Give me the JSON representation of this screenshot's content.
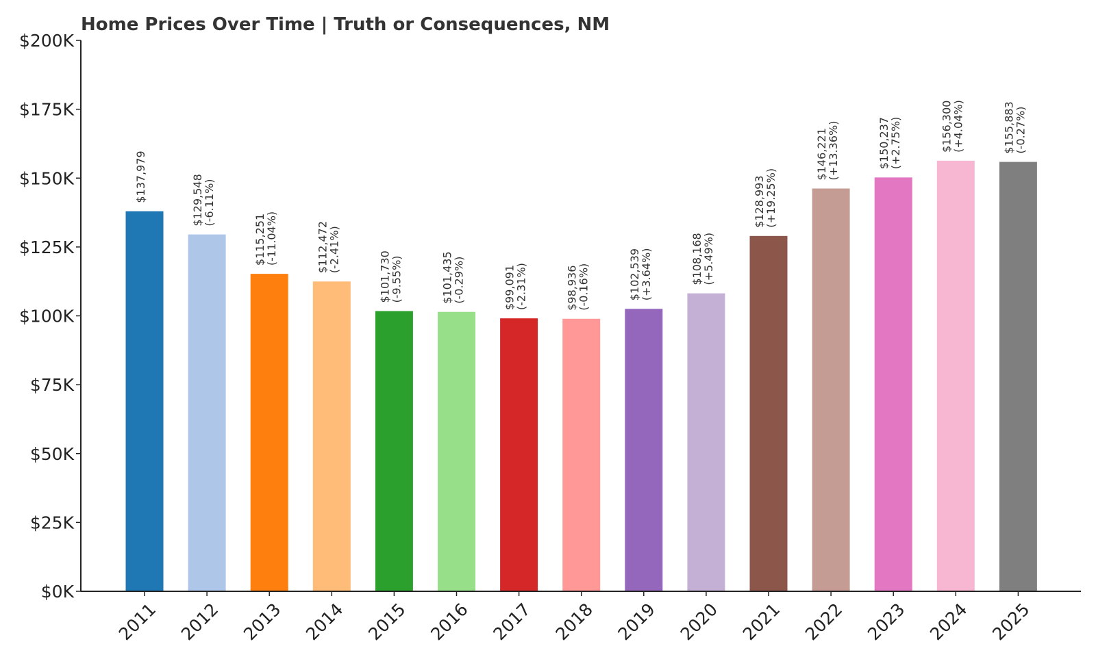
{
  "chart_data": {
    "type": "bar",
    "title": "Home Prices Over Time | Truth or Consequences, NM",
    "xlabel": "",
    "ylabel": "",
    "ylim": [
      0,
      200000
    ],
    "yticks": [
      {
        "value": 0,
        "label": "$0K"
      },
      {
        "value": 25000,
        "label": "$25K"
      },
      {
        "value": 50000,
        "label": "$50K"
      },
      {
        "value": 75000,
        "label": "$75K"
      },
      {
        "value": 100000,
        "label": "$100K"
      },
      {
        "value": 125000,
        "label": "$125K"
      },
      {
        "value": 150000,
        "label": "$150K"
      },
      {
        "value": 175000,
        "label": "$175K"
      },
      {
        "value": 200000,
        "label": "$200K"
      }
    ],
    "grid": false,
    "categories": [
      "2011",
      "2012",
      "2013",
      "2014",
      "2015",
      "2016",
      "2017",
      "2018",
      "2019",
      "2020",
      "2021",
      "2022",
      "2023",
      "2024",
      "2025"
    ],
    "values": [
      137979,
      129548,
      115251,
      112472,
      101730,
      101435,
      99091,
      98936,
      102539,
      108168,
      128993,
      146221,
      150237,
      156300,
      155883
    ],
    "value_labels": [
      "$137,979",
      "$129,548",
      "$115,251",
      "$112,472",
      "$101,730",
      "$101,435",
      "$99,091",
      "$98,936",
      "$102,539",
      "$108,168",
      "$128,993",
      "$146,221",
      "$150,237",
      "$156,300",
      "$155,883"
    ],
    "change_labels": [
      "",
      "(-6.11%)",
      "(-11.04%)",
      "(-2.41%)",
      "(-9.55%)",
      "(-0.29%)",
      "(-2.31%)",
      "(-0.16%)",
      "(+3.64%)",
      "(+5.49%)",
      "(+19.25%)",
      "(+13.36%)",
      "(+2.75%)",
      "(+4.04%)",
      "(-0.27%)"
    ],
    "colors": [
      "#1f77b4",
      "#aec7e8",
      "#ff7f0e",
      "#ffbb78",
      "#2ca02c",
      "#98df8a",
      "#d62728",
      "#ff9896",
      "#9467bd",
      "#c5b0d5",
      "#8c564b",
      "#c49c94",
      "#e377c2",
      "#f7b6d2",
      "#7f7f7f"
    ]
  }
}
